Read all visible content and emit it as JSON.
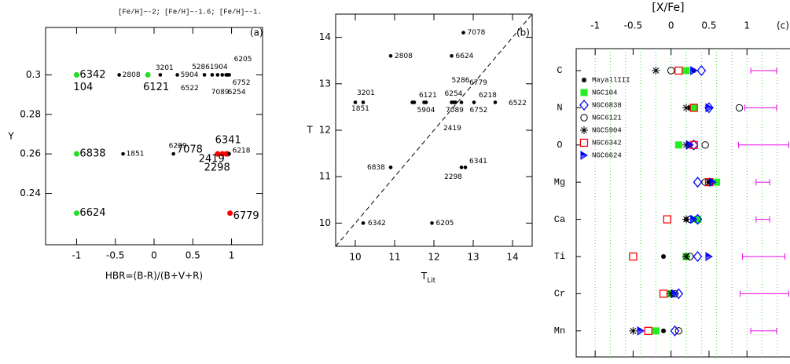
{
  "chart_data": [
    {
      "type": "scatter",
      "label": "(a)",
      "xlabel": "HBR=(B-R)/(B+V+R)",
      "ylabel": "Y",
      "xlim": [
        -1.4,
        1.4
      ],
      "ylim": [
        0.214,
        0.324
      ],
      "xticks": [
        -1,
        -0.5,
        0,
        0.5,
        1
      ],
      "yticks": [
        0.24,
        0.26,
        0.28,
        0.3
      ],
      "series": [
        {
          "name": "[Fe/H]~-2;",
          "color": "#ff0000",
          "x": [
            0.82,
            0.93,
            0.88,
            0.95,
            0.98
          ],
          "values": [
            0.26,
            0.26,
            0.26,
            0.26,
            0.23
          ],
          "labels": [
            "7078",
            "6341",
            "2419",
            "2298",
            "6779"
          ]
        },
        {
          "name": "[Fe/H]~-1.6;",
          "color": "#000000",
          "x": [
            -0.45,
            0.08,
            0.3,
            0.65,
            0.82,
            0.97,
            0.95,
            0.75,
            0.88,
            0.93,
            -0.4,
            0.25,
            0.97
          ],
          "values": [
            0.3,
            0.3,
            0.3,
            0.3,
            0.3,
            0.3,
            0.3,
            0.3,
            0.3,
            0.3,
            0.26,
            0.26,
            0.26
          ],
          "labels": [
            "2808",
            "3201",
            "5904",
            "5286",
            "1904",
            "6205",
            "6752",
            "6522",
            "7089",
            "6254",
            "1851",
            "6229",
            "6218"
          ]
        },
        {
          "name": "[Fe/H]~-1.",
          "color": "#22dd22",
          "x": [
            -1,
            -1,
            -0.08,
            -1,
            -1
          ],
          "values": [
            0.3,
            0.3,
            0.3,
            0.26,
            0.23
          ],
          "labels": [
            "6342",
            "104",
            "6121",
            "6838",
            "6624"
          ]
        }
      ]
    },
    {
      "type": "scatter",
      "label": "(b)",
      "xlabel": "T",
      "xlabel_sub": "Lit",
      "ylabel": "T",
      "xlim": [
        9.5,
        14.5
      ],
      "ylim": [
        9.5,
        14.5
      ],
      "xticks": [
        10,
        11,
        12,
        13,
        14
      ],
      "yticks": [
        10,
        11,
        12,
        13,
        14
      ],
      "identity_line": true,
      "series": [
        {
          "color": "#000000",
          "x": [
            12.75,
            10.9,
            12.45,
            10.0,
            10.2,
            11.5,
            11.45,
            11.75,
            11.8,
            12.45,
            12.5,
            12.7,
            12.55,
            13.02,
            13.56,
            10.9,
            12.8,
            12.7,
            10.2,
            11.95
          ],
          "values": [
            14.1,
            13.6,
            13.6,
            12.6,
            12.6,
            12.6,
            12.6,
            12.6,
            12.6,
            12.6,
            12.6,
            12.6,
            12.6,
            12.6,
            12.6,
            11.2,
            11.2,
            11.2,
            10.0,
            10.0
          ],
          "labels": [
            "7078",
            "2808",
            "6624",
            "1851",
            "3201",
            "6121",
            "5904",
            "6254",
            "7089",
            "5286",
            "2419",
            "6779",
            "6752",
            "6218",
            "6522",
            "6838",
            "6341",
            "2298",
            "6342",
            "6205"
          ]
        }
      ]
    },
    {
      "type": "dot",
      "label": "(c)",
      "xlabel": "[X/Fe]",
      "xlim": [
        -1.25,
        1.65
      ],
      "xticks": [
        -1,
        -0.5,
        0,
        0.5,
        1
      ],
      "grid_x": [
        -1,
        -0.8,
        -0.6,
        -0.4,
        -0.2,
        0,
        0.2,
        0.4,
        0.6,
        0.8,
        1,
        1.2,
        1.4,
        1.6
      ],
      "grid_color": "#44dd44",
      "categories": [
        "C",
        "N",
        "O",
        "Mg",
        "Ca",
        "Ti",
        "Cr",
        "Mn"
      ],
      "series": [
        {
          "name": "MayallIII",
          "marker": "dot",
          "color": "#000000",
          "values": [
            0.3,
            0.25,
            0.25,
            0.5,
            0.2,
            -0.1,
            0.0,
            -0.1
          ]
        },
        {
          "name": "NGC104",
          "marker": "filled-square",
          "color": "#22ee22",
          "values": [
            0.2,
            0.3,
            0.1,
            0.6,
            0.35,
            0.2,
            0.0,
            -0.2
          ]
        },
        {
          "name": "NGC6838",
          "marker": "open-diamond",
          "color": "#0000ff",
          "values": [
            0.4,
            0.5,
            0.3,
            0.35,
            0.35,
            0.35,
            0.1,
            0.05
          ]
        },
        {
          "name": "NGC6121",
          "marker": "open-circle",
          "color": "#000000",
          "values": [
            0.0,
            0.9,
            0.45,
            0.45,
            0.25,
            0.25,
            0.05,
            0.1
          ]
        },
        {
          "name": "NGC5904",
          "marker": "asterisk",
          "color": "#000000",
          "values": [
            -0.2,
            0.2,
            0.2,
            0.5,
            0.2,
            0.2,
            0.0,
            -0.5
          ]
        },
        {
          "name": "NGC6342",
          "marker": "open-square",
          "color": "#ff0000",
          "values": [
            0.1,
            0.3,
            0.3,
            0.5,
            -0.05,
            -0.5,
            -0.1,
            -0.3
          ]
        },
        {
          "name": "NGC6624",
          "marker": "half-triangle",
          "color": "#0000ff",
          "values": [
            0.3,
            0.5,
            0.25,
            0.55,
            0.3,
            0.5,
            0.05,
            -0.4
          ]
        }
      ],
      "errors": {
        "color": "#ee00ee",
        "values": [
          1.22,
          1.18,
          1.22,
          1.21,
          1.21,
          1.22,
          1.23,
          1.22
        ],
        "err": [
          0.17,
          0.21,
          0.33,
          0.09,
          0.09,
          0.28,
          0.32,
          0.17
        ]
      }
    }
  ]
}
